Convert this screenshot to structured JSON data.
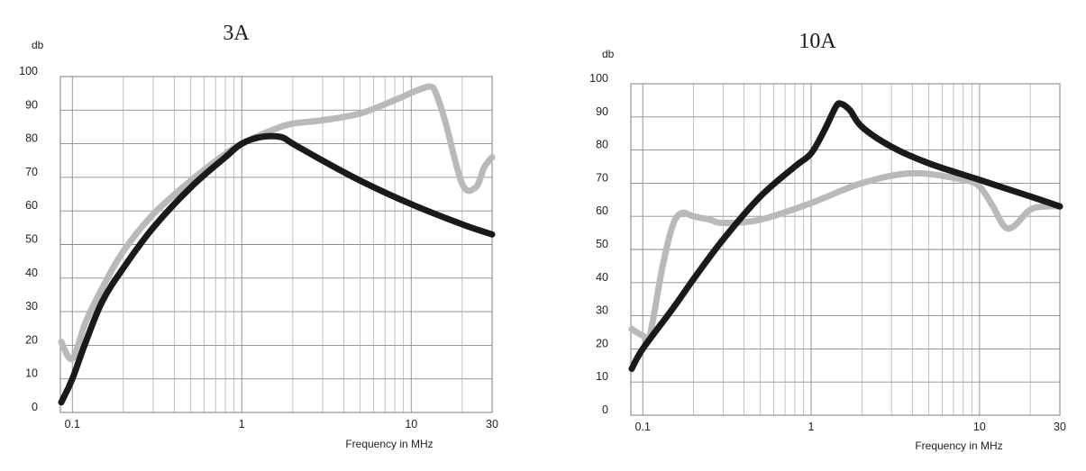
{
  "chart_data": [
    {
      "type": "line",
      "title": "3A",
      "ylabel": "db",
      "xlabel": "Frequency in MHz",
      "xscale": "log",
      "xlim": [
        0.085,
        30
      ],
      "ylim": [
        0,
        100
      ],
      "x_ticks": [
        {
          "value": 0.1,
          "label": "0.1"
        },
        {
          "value": 1,
          "label": "1"
        },
        {
          "value": 10,
          "label": "10"
        },
        {
          "value": 30,
          "label": "30"
        }
      ],
      "y_ticks": [
        0,
        10,
        20,
        30,
        40,
        50,
        60,
        70,
        80,
        90,
        100
      ],
      "grid": true,
      "series": [
        {
          "color": "#1a1a1a",
          "x": [
            0.086,
            0.1,
            0.12,
            0.15,
            0.2,
            0.3,
            0.5,
            0.8,
            1.0,
            1.3,
            1.7,
            2.0,
            3.0,
            5.0,
            10,
            20,
            30
          ],
          "y": [
            3,
            10,
            21,
            33,
            43,
            55,
            67,
            76,
            80,
            82,
            82,
            80,
            75,
            69,
            62,
            56,
            53
          ]
        },
        {
          "color": "#b9b9b9",
          "x": [
            0.086,
            0.1,
            0.12,
            0.15,
            0.2,
            0.3,
            0.5,
            0.8,
            1.0,
            1.5,
            2.0,
            3.0,
            5.0,
            8.0,
            11,
            13,
            14,
            16,
            20,
            24,
            27,
            30
          ],
          "y": [
            21,
            16,
            27,
            37,
            48,
            59,
            69,
            77,
            80,
            84,
            86,
            87,
            89,
            93,
            96,
            97,
            95,
            86,
            68,
            67,
            73,
            76
          ]
        }
      ]
    },
    {
      "type": "line",
      "title": "10A",
      "ylabel": "db",
      "xlabel": "Frequency in MHz",
      "xscale": "log",
      "xlim": [
        0.085,
        30
      ],
      "ylim": [
        0,
        100
      ],
      "x_ticks": [
        {
          "value": 0.1,
          "label": "0.1"
        },
        {
          "value": 1,
          "label": "1"
        },
        {
          "value": 10,
          "label": "10"
        },
        {
          "value": 30,
          "label": "30"
        }
      ],
      "y_ticks": [
        0,
        10,
        20,
        30,
        40,
        50,
        60,
        70,
        80,
        90,
        100
      ],
      "grid": true,
      "series": [
        {
          "color": "#1a1a1a",
          "x": [
            0.086,
            0.1,
            0.15,
            0.2,
            0.3,
            0.5,
            0.8,
            1.0,
            1.2,
            1.4,
            1.5,
            1.7,
            2.0,
            3.0,
            5.0,
            10,
            20,
            30
          ],
          "y": [
            14,
            20,
            32,
            41,
            53,
            66,
            75,
            79,
            86,
            93,
            94,
            92,
            87,
            81,
            76,
            71,
            66,
            63
          ]
        },
        {
          "color": "#b9b9b9",
          "x": [
            0.086,
            0.1,
            0.11,
            0.13,
            0.15,
            0.17,
            0.2,
            0.25,
            0.3,
            0.5,
            1.0,
            2.0,
            4.0,
            8.0,
            10,
            12,
            14,
            16,
            20,
            25,
            30
          ],
          "y": [
            26,
            24,
            24,
            44,
            57,
            61,
            60,
            59,
            58,
            59,
            64,
            70,
            73,
            71,
            69,
            63,
            57,
            57,
            62,
            63,
            63
          ]
        }
      ]
    }
  ]
}
